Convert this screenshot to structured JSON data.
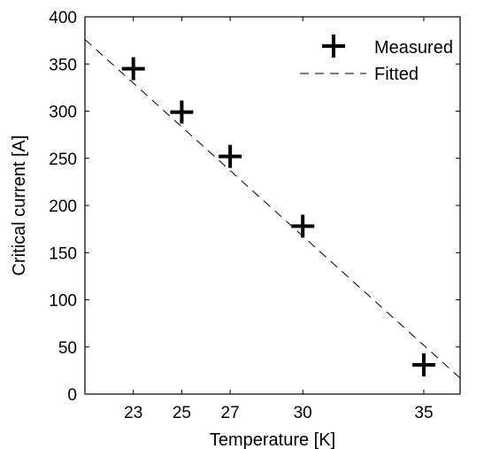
{
  "chart_data": {
    "type": "scatter",
    "xlabel": "Temperature [K]",
    "ylabel": "Critical current [A]",
    "xlim": [
      21,
      36.5
    ],
    "ylim": [
      0,
      400
    ],
    "x_ticks": [
      23,
      25,
      27,
      30,
      35
    ],
    "y_ticks": [
      0,
      50,
      100,
      150,
      200,
      250,
      300,
      350,
      400
    ],
    "grid": false,
    "legend_position": "top-right",
    "series": [
      {
        "name": "Measured",
        "kind": "points",
        "marker": "plus",
        "color": "#000000",
        "x": [
          23,
          25,
          27,
          30,
          35
        ],
        "y": [
          345,
          299,
          252,
          178,
          31
        ]
      },
      {
        "name": "Fitted",
        "kind": "line",
        "style": "dashed",
        "color": "#000000",
        "x": [
          21,
          36.5
        ],
        "y": [
          376,
          17
        ]
      }
    ]
  }
}
